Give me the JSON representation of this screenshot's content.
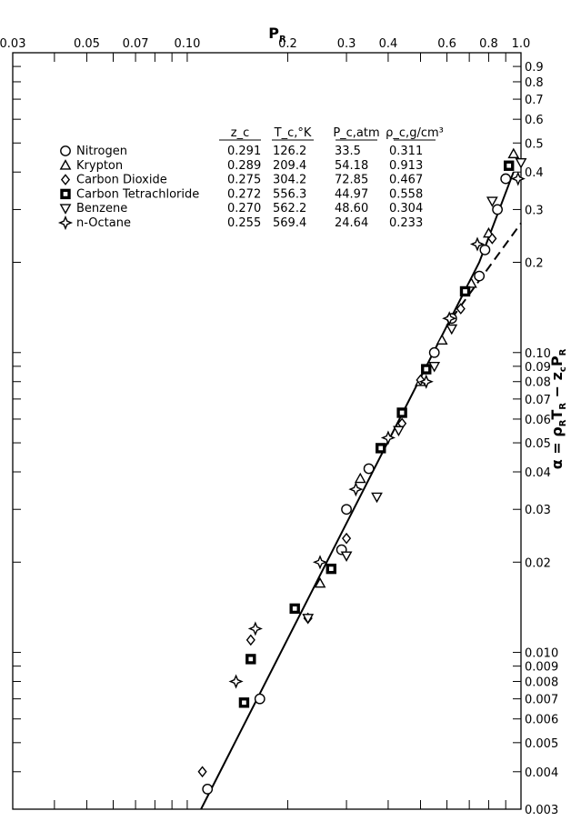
{
  "chart_data": {
    "type": "scatter",
    "title": "",
    "top_axis_title": "P_R",
    "right_axis_title": "α = ρ_R T_R − z_c P_R",
    "x_scale": "log",
    "y_scale": "log",
    "xlim": [
      0.03,
      1.0
    ],
    "ylim": [
      0.003,
      1.0
    ],
    "x_ticks": [
      {
        "value": 0.03,
        "label": "0.03"
      },
      {
        "value": 0.05,
        "label": "0.05"
      },
      {
        "value": 0.07,
        "label": "0.07"
      },
      {
        "value": 0.1,
        "label": "0.10"
      },
      {
        "value": 0.2,
        "label": "0.2"
      },
      {
        "value": 0.3,
        "label": "0.3"
      },
      {
        "value": 0.4,
        "label": "0.4"
      },
      {
        "value": 0.6,
        "label": "0.6"
      },
      {
        "value": 0.8,
        "label": "0.8"
      },
      {
        "value": 1.0,
        "label": "1.0"
      }
    ],
    "y_ticks": [
      {
        "value": 0.9,
        "label": "0.9"
      },
      {
        "value": 0.8,
        "label": "0.8"
      },
      {
        "value": 0.7,
        "label": "0.7"
      },
      {
        "value": 0.6,
        "label": "0.6"
      },
      {
        "value": 0.5,
        "label": "0.5"
      },
      {
        "value": 0.4,
        "label": "0.4"
      },
      {
        "value": 0.3,
        "label": "0.3"
      },
      {
        "value": 0.2,
        "label": "0.2"
      },
      {
        "value": 0.1,
        "label": "0.10"
      },
      {
        "value": 0.09,
        "label": "0.09"
      },
      {
        "value": 0.08,
        "label": "0.08"
      },
      {
        "value": 0.07,
        "label": "0.07"
      },
      {
        "value": 0.06,
        "label": "0.06"
      },
      {
        "value": 0.05,
        "label": "0.05"
      },
      {
        "value": 0.04,
        "label": "0.04"
      },
      {
        "value": 0.03,
        "label": "0.03"
      },
      {
        "value": 0.02,
        "label": "0.02"
      },
      {
        "value": 0.01,
        "label": "0.010"
      },
      {
        "value": 0.009,
        "label": "0.009"
      },
      {
        "value": 0.008,
        "label": "0.008"
      },
      {
        "value": 0.007,
        "label": "0.007"
      },
      {
        "value": 0.006,
        "label": "0.006"
      },
      {
        "value": 0.005,
        "label": "0.005"
      },
      {
        "value": 0.004,
        "label": "0.004"
      },
      {
        "value": 0.003,
        "label": "0.003"
      }
    ],
    "legend": {
      "placement": "top-left",
      "headers": [
        "z_c",
        "T_c,°K",
        "P_c,atm",
        "ρ_c,g/cm³"
      ],
      "rows": [
        {
          "marker": "circle",
          "name": "Nitrogen",
          "zc": "0.291",
          "tc": "126.2",
          "pc": "33.5",
          "rhoc": "0.311"
        },
        {
          "marker": "triangle-up",
          "name": "Krypton",
          "zc": "0.289",
          "tc": "209.4",
          "pc": "54.18",
          "rhoc": "0.913"
        },
        {
          "marker": "diamond",
          "name": "Carbon Dioxide",
          "zc": "0.275",
          "tc": "304.2",
          "pc": "72.85",
          "rhoc": "0.467"
        },
        {
          "marker": "square",
          "name": "Carbon Tetrachloride",
          "zc": "0.272",
          "tc": "556.3",
          "pc": "44.97",
          "rhoc": "0.558"
        },
        {
          "marker": "triangle-down",
          "name": "Benzene",
          "zc": "0.270",
          "tc": "562.2",
          "pc": "48.60",
          "rhoc": "0.304"
        },
        {
          "marker": "star",
          "name": "n-Octane",
          "zc": "0.255",
          "tc": "569.4",
          "pc": "24.64",
          "rhoc": "0.233"
        }
      ]
    },
    "lines": [
      {
        "style": "solid",
        "points": [
          [
            0.11,
            0.003
          ],
          [
            0.75,
            0.2
          ],
          [
            0.95,
            0.4
          ]
        ]
      },
      {
        "style": "dashed",
        "points": [
          [
            0.62,
            0.13
          ],
          [
            1.0,
            0.27
          ]
        ]
      }
    ],
    "series": [
      {
        "marker": "circle",
        "points": [
          [
            0.115,
            0.0035
          ],
          [
            0.165,
            0.007
          ],
          [
            0.3,
            0.03
          ],
          [
            0.35,
            0.041
          ],
          [
            0.29,
            0.022
          ],
          [
            0.55,
            0.1
          ],
          [
            0.62,
            0.13
          ],
          [
            0.75,
            0.18
          ],
          [
            0.78,
            0.22
          ],
          [
            0.85,
            0.3
          ],
          [
            0.9,
            0.38
          ]
        ]
      },
      {
        "marker": "triangle-up",
        "points": [
          [
            0.25,
            0.017
          ],
          [
            0.33,
            0.038
          ],
          [
            0.5,
            0.08
          ],
          [
            0.58,
            0.11
          ],
          [
            0.71,
            0.17
          ],
          [
            0.8,
            0.25
          ],
          [
            0.95,
            0.46
          ]
        ]
      },
      {
        "marker": "diamond",
        "points": [
          [
            0.111,
            0.004
          ],
          [
            0.155,
            0.011
          ],
          [
            0.23,
            0.013
          ],
          [
            0.3,
            0.024
          ],
          [
            0.44,
            0.058
          ],
          [
            0.5,
            0.081
          ],
          [
            0.66,
            0.14
          ],
          [
            0.82,
            0.24
          ]
        ]
      },
      {
        "marker": "square",
        "points": [
          [
            0.148,
            0.0068
          ],
          [
            0.155,
            0.0095
          ],
          [
            0.21,
            0.014
          ],
          [
            0.27,
            0.019
          ],
          [
            0.38,
            0.048
          ],
          [
            0.44,
            0.063
          ],
          [
            0.52,
            0.088
          ],
          [
            0.68,
            0.16
          ],
          [
            0.92,
            0.42
          ]
        ]
      },
      {
        "marker": "triangle-down",
        "points": [
          [
            0.23,
            0.013
          ],
          [
            0.3,
            0.021
          ],
          [
            0.37,
            0.033
          ],
          [
            0.43,
            0.055
          ],
          [
            0.55,
            0.09
          ],
          [
            0.62,
            0.12
          ],
          [
            0.82,
            0.32
          ],
          [
            1.0,
            0.43
          ]
        ]
      },
      {
        "marker": "star",
        "points": [
          [
            0.14,
            0.008
          ],
          [
            0.16,
            0.012
          ],
          [
            0.25,
            0.02
          ],
          [
            0.32,
            0.035
          ],
          [
            0.4,
            0.052
          ],
          [
            0.52,
            0.08
          ],
          [
            0.61,
            0.13
          ],
          [
            0.74,
            0.23
          ],
          [
            0.98,
            0.38
          ]
        ]
      }
    ]
  }
}
